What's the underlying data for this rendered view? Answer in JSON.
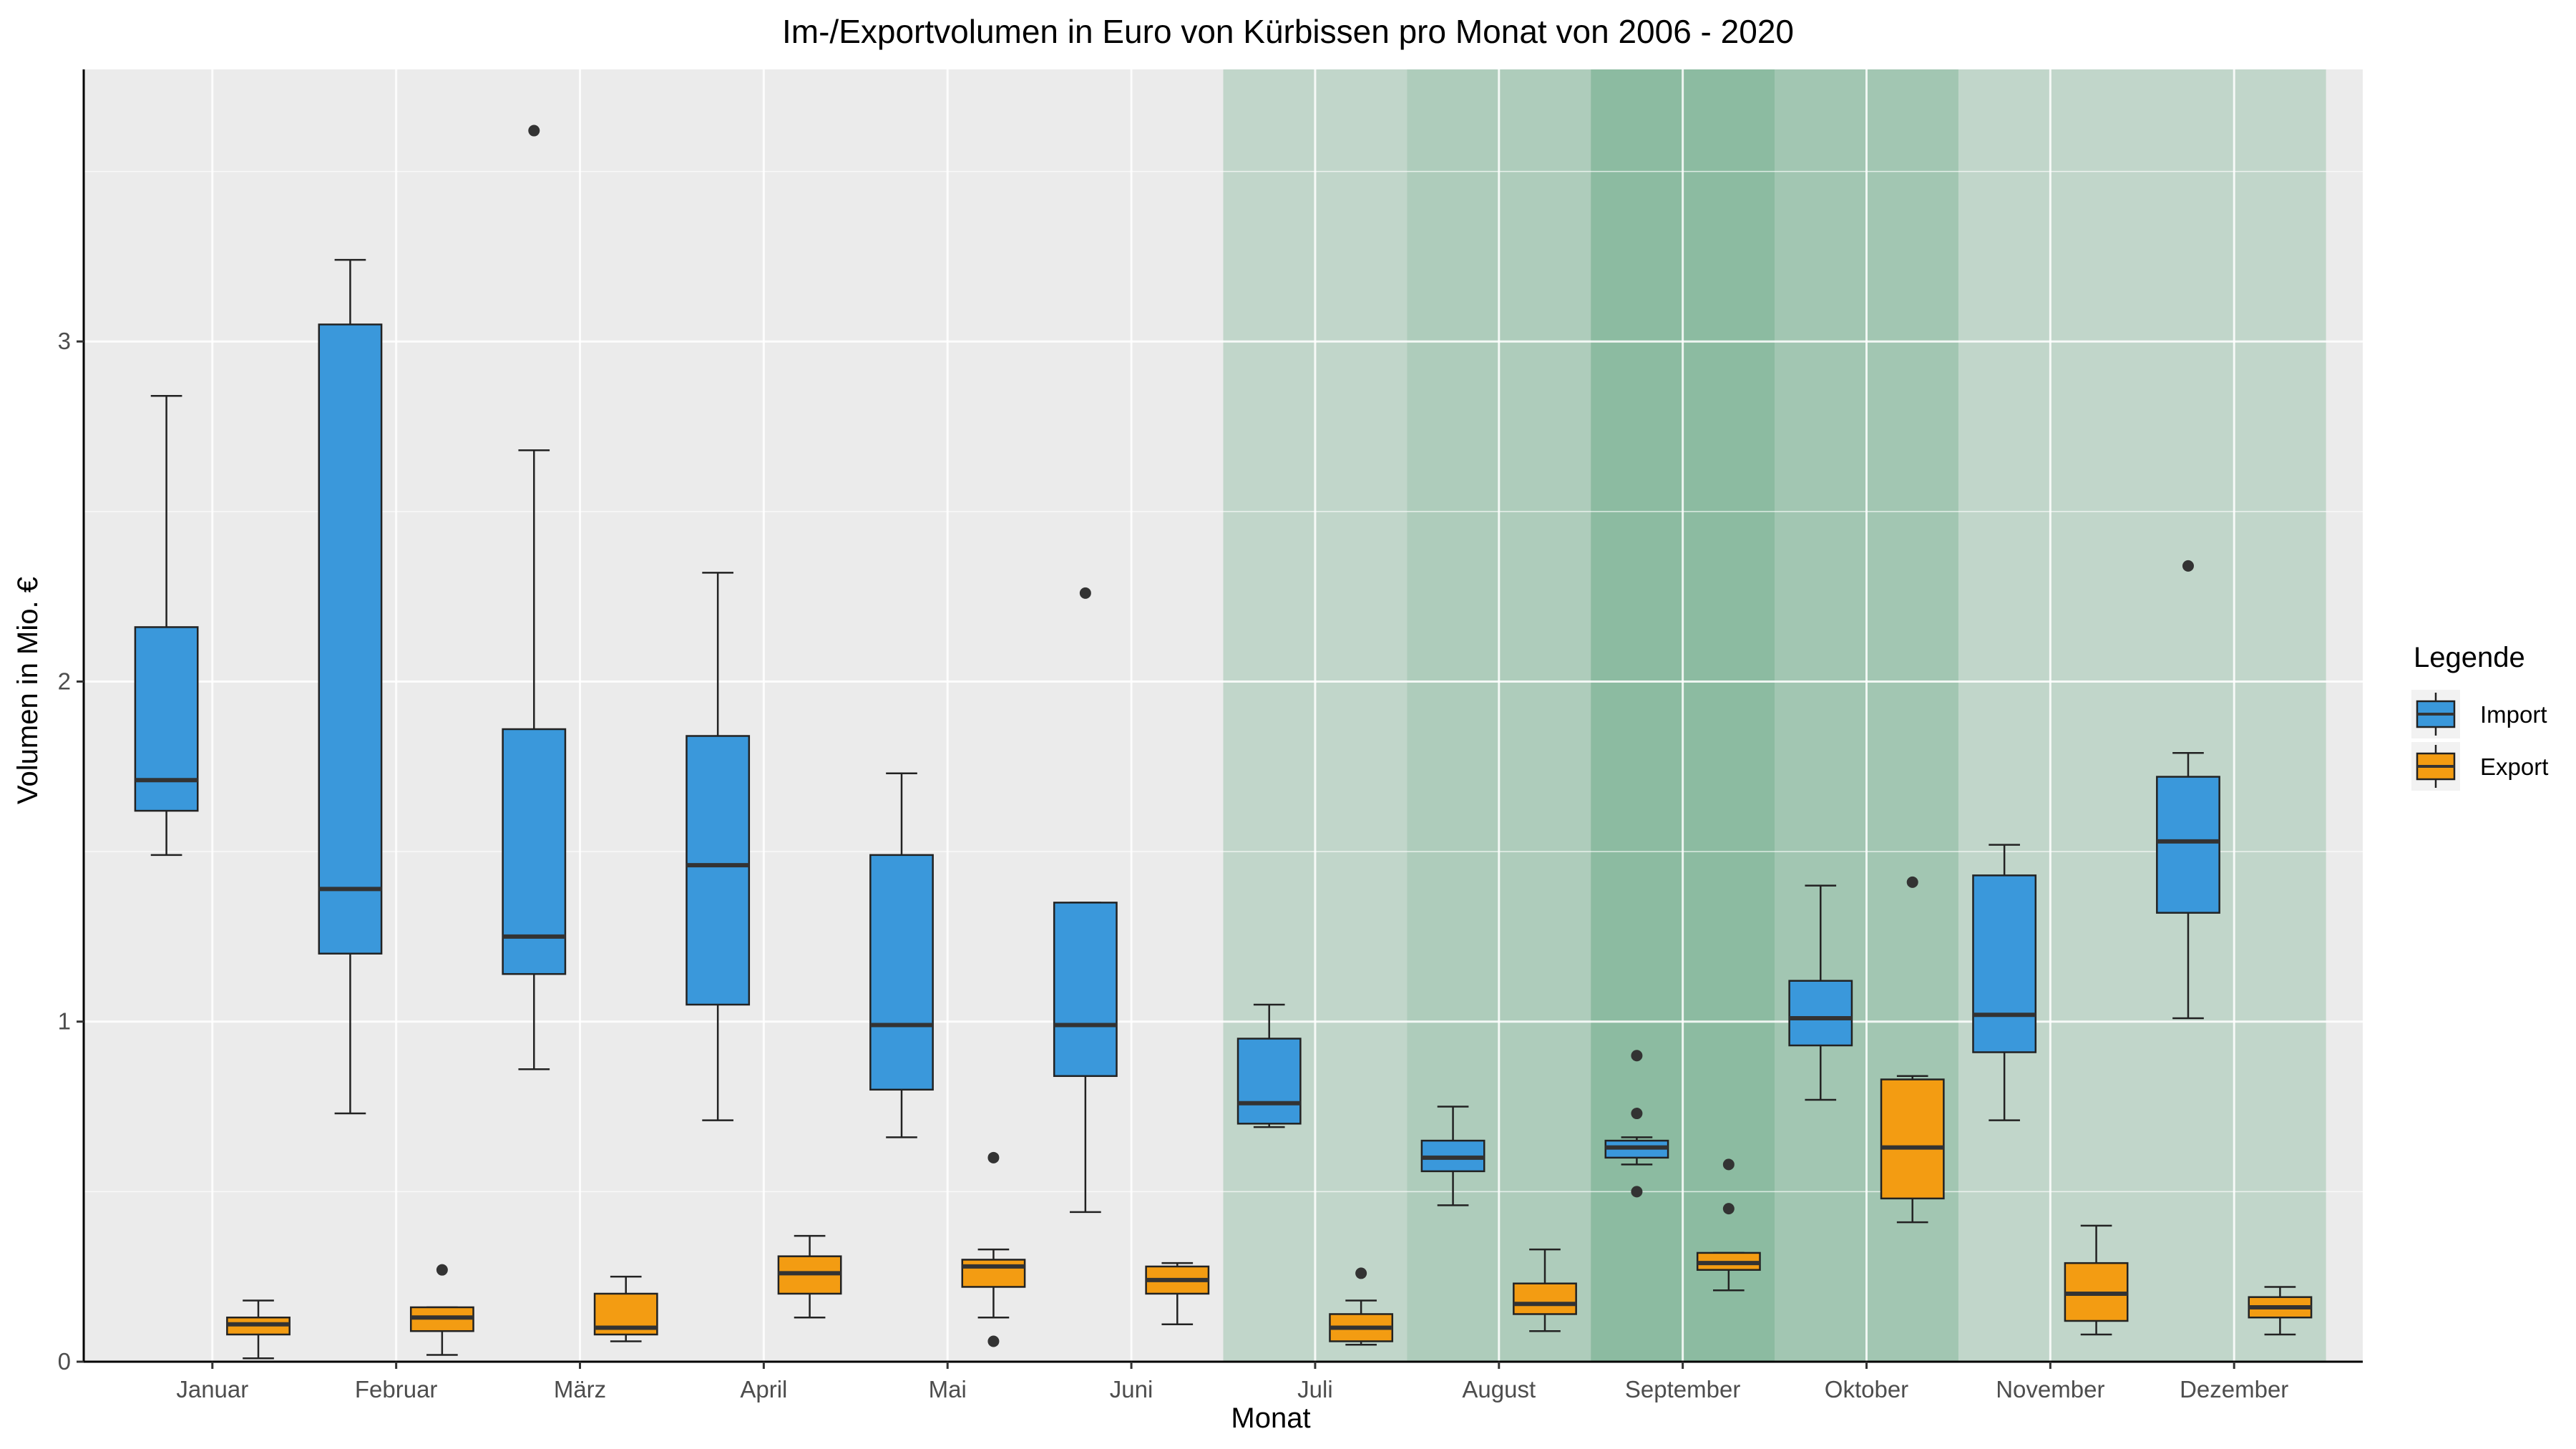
{
  "chart_data": {
    "type": "boxplot",
    "title": "Im-/Exportvolumen in Euro von Kürbissen pro Monat von 2006 - 2020",
    "xlabel": "Monat",
    "ylabel": "Volumen in Mio. €",
    "ylim": [
      0,
      3.8
    ],
    "y_ticks": [
      "0",
      "1",
      "2",
      "3"
    ],
    "grid": true,
    "legend_position": "right",
    "legend_title": "Legende",
    "categories": [
      "Januar",
      "Februar",
      "März",
      "April",
      "Mai",
      "Juni",
      "Juli",
      "August",
      "September",
      "Oktober",
      "November",
      "Dezember"
    ],
    "season_shading_alpha": [
      0,
      0,
      0,
      0,
      0,
      0,
      0.22,
      0.32,
      0.5,
      0.38,
      0.22,
      0.22
    ],
    "series": [
      {
        "name": "Import",
        "color": "#3a98db",
        "boxes": [
          {
            "min": 1.49,
            "q1": 1.62,
            "median": 1.71,
            "q3": 2.16,
            "max": 2.84,
            "outliers": []
          },
          {
            "min": 0.73,
            "q1": 1.2,
            "median": 1.39,
            "q3": 3.05,
            "max": 3.24,
            "outliers": []
          },
          {
            "min": 0.86,
            "q1": 1.14,
            "median": 1.25,
            "q3": 1.86,
            "max": 2.68,
            "outliers": [
              3.62
            ]
          },
          {
            "min": 0.71,
            "q1": 1.05,
            "median": 1.46,
            "q3": 1.84,
            "max": 2.32,
            "outliers": []
          },
          {
            "min": 0.66,
            "q1": 0.8,
            "median": 0.99,
            "q3": 1.49,
            "max": 1.73,
            "outliers": []
          },
          {
            "min": 0.44,
            "q1": 0.84,
            "median": 0.99,
            "q3": 1.35,
            "max": 1.35,
            "outliers": [
              2.26
            ]
          },
          {
            "min": 0.69,
            "q1": 0.7,
            "median": 0.76,
            "q3": 0.95,
            "max": 1.05,
            "outliers": []
          },
          {
            "min": 0.46,
            "q1": 0.56,
            "median": 0.6,
            "q3": 0.65,
            "max": 0.75,
            "outliers": []
          },
          {
            "min": 0.58,
            "q1": 0.6,
            "median": 0.63,
            "q3": 0.65,
            "max": 0.66,
            "outliers": [
              0.9,
              0.73,
              0.5
            ]
          },
          {
            "min": 0.77,
            "q1": 0.93,
            "median": 1.01,
            "q3": 1.12,
            "max": 1.4,
            "outliers": []
          },
          {
            "min": 0.71,
            "q1": 0.91,
            "median": 1.02,
            "q3": 1.43,
            "max": 1.52,
            "outliers": []
          },
          {
            "min": 1.01,
            "q1": 1.32,
            "median": 1.53,
            "q3": 1.72,
            "max": 1.79,
            "outliers": [
              2.34
            ]
          }
        ]
      },
      {
        "name": "Export",
        "color": "#f39c12",
        "boxes": [
          {
            "min": 0.01,
            "q1": 0.08,
            "median": 0.11,
            "q3": 0.13,
            "max": 0.18,
            "outliers": []
          },
          {
            "min": 0.02,
            "q1": 0.09,
            "median": 0.13,
            "q3": 0.16,
            "max": 0.16,
            "outliers": [
              0.27
            ]
          },
          {
            "min": 0.06,
            "q1": 0.08,
            "median": 0.1,
            "q3": 0.2,
            "max": 0.25,
            "outliers": []
          },
          {
            "min": 0.13,
            "q1": 0.2,
            "median": 0.26,
            "q3": 0.31,
            "max": 0.37,
            "outliers": []
          },
          {
            "min": 0.13,
            "q1": 0.22,
            "median": 0.28,
            "q3": 0.3,
            "max": 0.33,
            "outliers": [
              0.6,
              0.06
            ]
          },
          {
            "min": 0.11,
            "q1": 0.2,
            "median": 0.24,
            "q3": 0.28,
            "max": 0.29,
            "outliers": []
          },
          {
            "min": 0.05,
            "q1": 0.06,
            "median": 0.1,
            "q3": 0.14,
            "max": 0.18,
            "outliers": [
              0.26
            ]
          },
          {
            "min": 0.09,
            "q1": 0.14,
            "median": 0.17,
            "q3": 0.23,
            "max": 0.33,
            "outliers": []
          },
          {
            "min": 0.21,
            "q1": 0.27,
            "median": 0.29,
            "q3": 0.32,
            "max": 0.32,
            "outliers": [
              0.58,
              0.45
            ]
          },
          {
            "min": 0.41,
            "q1": 0.48,
            "median": 0.63,
            "q3": 0.83,
            "max": 0.84,
            "outliers": [
              1.41
            ]
          },
          {
            "min": 0.08,
            "q1": 0.12,
            "median": 0.2,
            "q3": 0.29,
            "max": 0.4,
            "outliers": []
          },
          {
            "min": 0.08,
            "q1": 0.13,
            "median": 0.16,
            "q3": 0.19,
            "max": 0.22,
            "outliers": []
          }
        ]
      }
    ]
  }
}
